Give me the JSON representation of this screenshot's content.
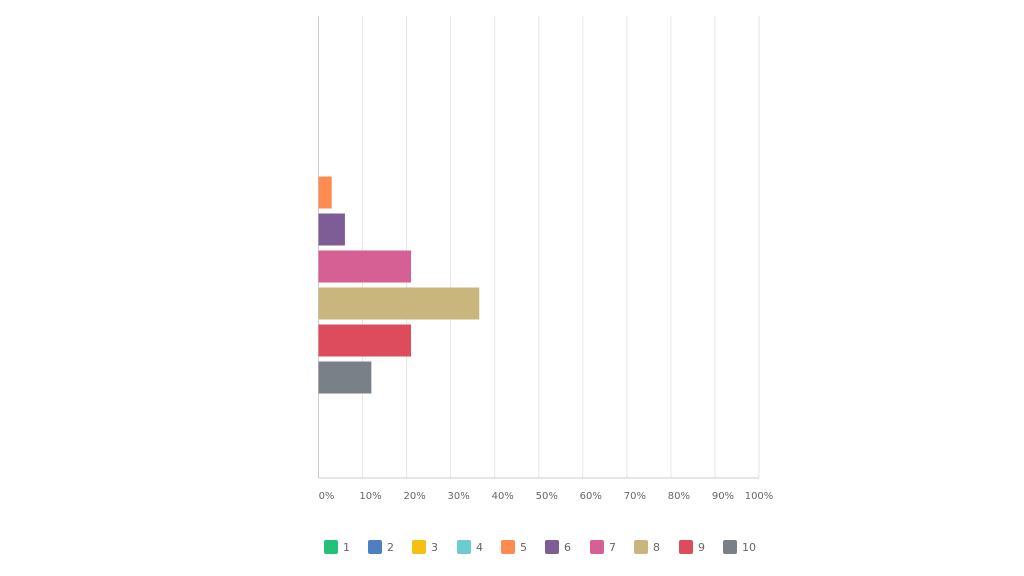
{
  "chart_data": {
    "type": "bar",
    "orientation": "horizontal",
    "categories": [
      "1",
      "2",
      "3",
      "4",
      "5",
      "6",
      "7",
      "8",
      "9",
      "10"
    ],
    "values": [
      0,
      0,
      0,
      0,
      3,
      6,
      21,
      36.5,
      21,
      12
    ],
    "x_ticks": [
      "0%",
      "10%",
      "20%",
      "30%",
      "40%",
      "50%",
      "60%",
      "70%",
      "80%",
      "90%",
      "100%"
    ],
    "xlim": [
      0,
      100
    ],
    "grid": true,
    "legend_position": "bottom",
    "legend": [
      {
        "label": "1",
        "color": "#25C17A"
      },
      {
        "label": "2",
        "color": "#4D7FC2"
      },
      {
        "label": "3",
        "color": "#F7BE13"
      },
      {
        "label": "4",
        "color": "#6CCCCF"
      },
      {
        "label": "5",
        "color": "#FE8B4F"
      },
      {
        "label": "6",
        "color": "#7E5C95"
      },
      {
        "label": "7",
        "color": "#D65F93"
      },
      {
        "label": "8",
        "color": "#C8B67C"
      },
      {
        "label": "9",
        "color": "#DD4C5C"
      },
      {
        "label": "10",
        "color": "#7A8087"
      }
    ]
  }
}
